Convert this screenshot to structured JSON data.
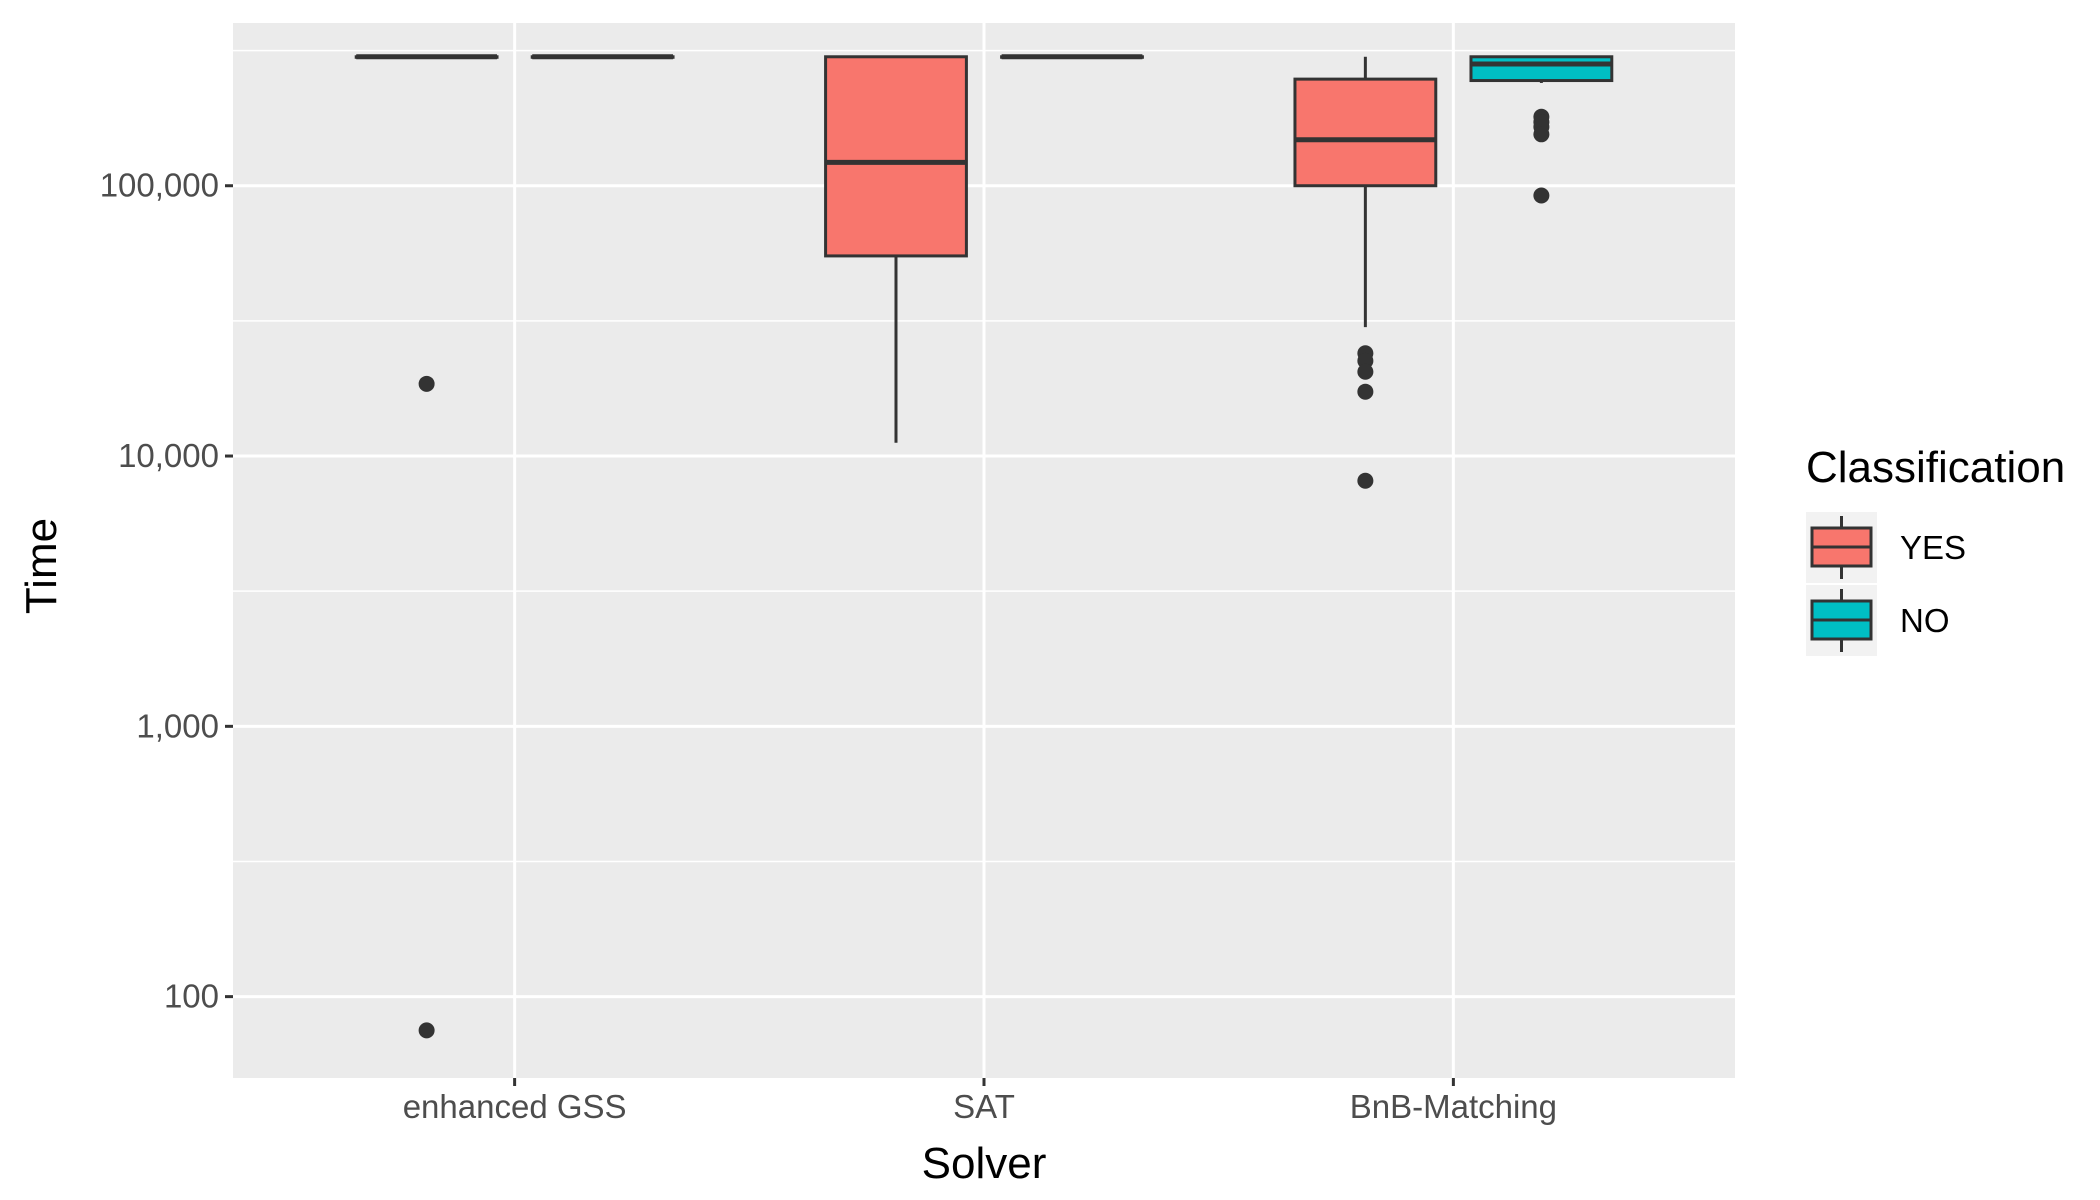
{
  "chart_data": {
    "type": "boxplot",
    "title": "",
    "xlabel": "Solver",
    "ylabel": "Time",
    "y_scale": "log10",
    "ylim": [
      50,
      400000
    ],
    "y_ticks": [
      100,
      1000,
      10000,
      100000
    ],
    "y_tick_labels": [
      "100",
      "1,000",
      "10,000",
      "100,000"
    ],
    "categories": [
      "enhanced GSS",
      "SAT",
      "BnB-Matching"
    ],
    "legend": {
      "title": "Classification",
      "position": "right",
      "entries": [
        {
          "label": "YES",
          "color": "#F8766D"
        },
        {
          "label": "NO",
          "color": "#00BFC4"
        }
      ]
    },
    "series": [
      {
        "name": "YES",
        "color": "#F8766D",
        "boxes": [
          {
            "category": "enhanced GSS",
            "q1": 300000,
            "median": 300000,
            "q3": 300000,
            "whisker_low": 300000,
            "whisker_high": 300000,
            "outliers": [
              18500,
              75
            ]
          },
          {
            "category": "SAT",
            "q1": 55000,
            "median": 122000,
            "q3": 300000,
            "whisker_low": 11200,
            "whisker_high": 300000,
            "outliers": []
          },
          {
            "category": "BnB-Matching",
            "q1": 100000,
            "median": 148000,
            "q3": 248000,
            "whisker_low": 30000,
            "whisker_high": 300000,
            "outliers": [
              24000,
              22500,
              20500,
              17300,
              8100
            ]
          }
        ]
      },
      {
        "name": "NO",
        "color": "#00BFC4",
        "boxes": [
          {
            "category": "enhanced GSS",
            "q1": 300000,
            "median": 300000,
            "q3": 300000,
            "whisker_low": 300000,
            "whisker_high": 300000,
            "outliers": []
          },
          {
            "category": "SAT",
            "q1": 300000,
            "median": 300000,
            "q3": 300000,
            "whisker_low": 300000,
            "whisker_high": 300000,
            "outliers": []
          },
          {
            "category": "BnB-Matching",
            "q1": 245000,
            "median": 282000,
            "q3": 300000,
            "whisker_low": 240000,
            "whisker_high": 300000,
            "outliers": [
              180000,
              172000,
              165000,
              155000,
              92000
            ]
          }
        ]
      }
    ]
  }
}
